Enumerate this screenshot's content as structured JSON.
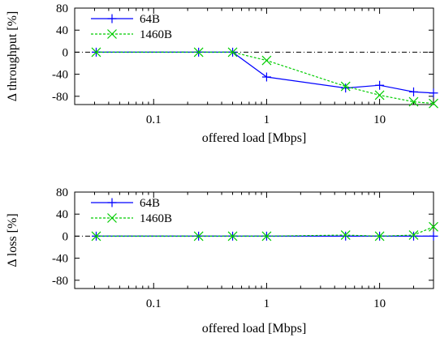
{
  "chart_data": [
    {
      "type": "line",
      "xscale": "log",
      "xlim": [
        0.02,
        30
      ],
      "ylim": [
        -95,
        80
      ],
      "x": [
        0.031,
        0.25,
        0.5,
        1,
        5,
        10,
        20,
        30
      ],
      "xticks": [
        {
          "value": 0.1,
          "label": "0.1"
        },
        {
          "value": 1,
          "label": "1"
        },
        {
          "value": 10,
          "label": "10"
        }
      ],
      "yticks": [
        {
          "value": 80,
          "label": "80"
        },
        {
          "value": 40,
          "label": "40"
        },
        {
          "value": 0,
          "label": "0"
        },
        {
          "value": -40,
          "label": "-40"
        },
        {
          "value": -80,
          "label": "-80"
        }
      ],
      "xlabel": "offered load [Mbps]",
      "ylabel": "Δ throughput [%]",
      "reference_line": 0,
      "legend": "top-left",
      "series": [
        {
          "name": "64B",
          "color": "#0000ff",
          "marker": "plus",
          "line": "solid",
          "values": [
            0,
            0,
            0,
            -45,
            -65,
            -60,
            -72,
            -74
          ]
        },
        {
          "name": "1460B",
          "color": "#00cc00",
          "marker": "cross",
          "line": "dashed",
          "values": [
            0,
            0,
            0,
            -15,
            -62,
            -78,
            -90,
            -93
          ]
        }
      ]
    },
    {
      "type": "line",
      "xscale": "log",
      "xlim": [
        0.02,
        30
      ],
      "ylim": [
        -95,
        80
      ],
      "x": [
        0.031,
        0.25,
        0.5,
        1,
        5,
        10,
        20,
        30
      ],
      "xticks": [
        {
          "value": 0.1,
          "label": "0.1"
        },
        {
          "value": 1,
          "label": "1"
        },
        {
          "value": 10,
          "label": "10"
        }
      ],
      "yticks": [
        {
          "value": 80,
          "label": "80"
        },
        {
          "value": 40,
          "label": "40"
        },
        {
          "value": 0,
          "label": "0"
        },
        {
          "value": -40,
          "label": "-40"
        },
        {
          "value": -80,
          "label": "-80"
        }
      ],
      "xlabel": "offered load [Mbps]",
      "ylabel": "Δ loss [%]",
      "reference_line": 0,
      "legend": "top-left",
      "series": [
        {
          "name": "64B",
          "color": "#0000ff",
          "marker": "plus",
          "line": "solid",
          "values": [
            0,
            0,
            0,
            0,
            0,
            0,
            0,
            0
          ]
        },
        {
          "name": "1460B",
          "color": "#00cc00",
          "marker": "cross",
          "line": "dashed",
          "values": [
            0,
            0,
            0,
            0,
            2,
            0,
            2,
            17
          ]
        }
      ]
    }
  ]
}
